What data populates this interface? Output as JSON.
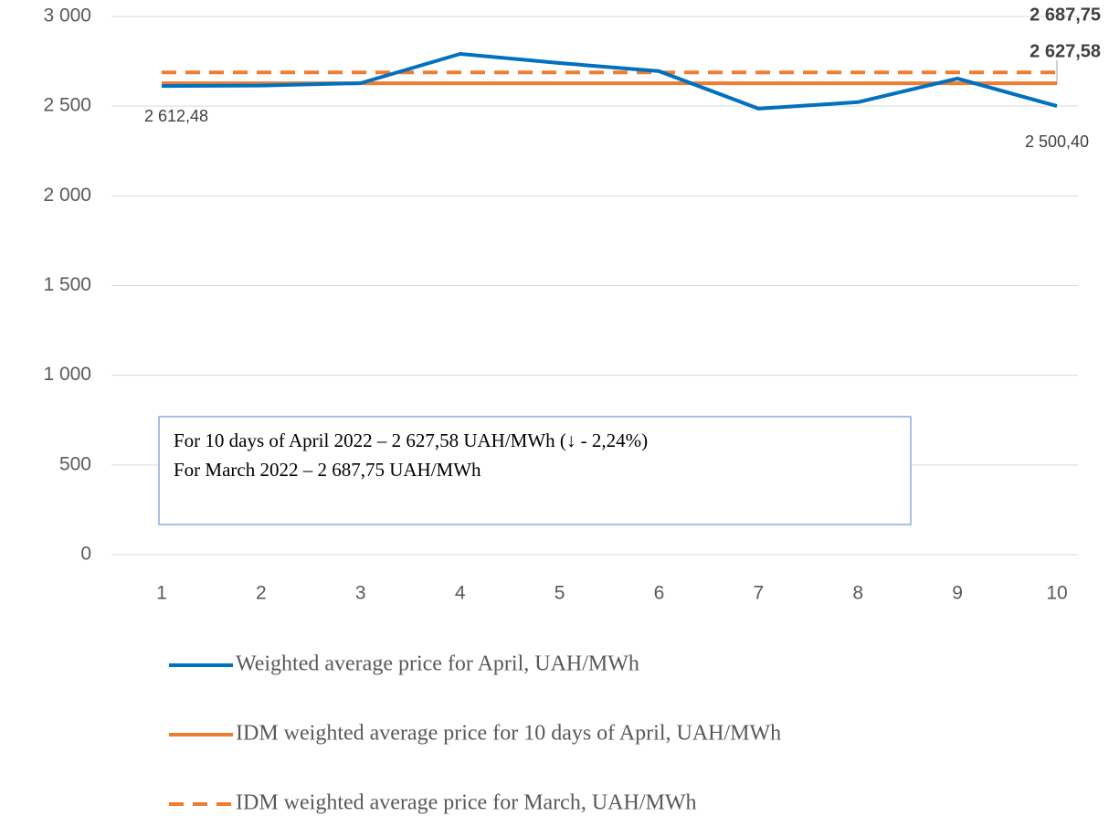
{
  "chart_data": {
    "type": "line",
    "categories": [
      1,
      2,
      3,
      4,
      5,
      6,
      7,
      8,
      9,
      10
    ],
    "ylim": [
      0,
      3000
    ],
    "yticks": [
      0,
      500,
      {
        "value": 1000,
        "label": "1 000"
      },
      {
        "value": 1500,
        "label": "1 500"
      },
      {
        "value": 2000,
        "label": "2 000"
      },
      {
        "value": 2500,
        "label": "2 500"
      },
      {
        "value": 3000,
        "label": "3 000"
      }
    ],
    "grid": true,
    "legend": "bottom",
    "series": [
      {
        "name": "Weighted average price for April, UAH/MWh",
        "color": "#0070c0",
        "dash": false,
        "values": [
          2612.48,
          2615,
          2628,
          2791,
          2740,
          2695,
          2486,
          2522,
          2654,
          2500.4
        ],
        "value_labels": [
          "2 612,48",
          null,
          null,
          null,
          null,
          null,
          null,
          null,
          null,
          "2 500,40"
        ]
      },
      {
        "name": "IDM weighted average price for 10 days of April, UAH/MWh",
        "color": "#ed7d31",
        "dash": false,
        "values": [
          2627.58,
          2627.58,
          2627.58,
          2627.58,
          2627.58,
          2627.58,
          2627.58,
          2627.58,
          2627.58,
          2627.58
        ],
        "value_labels": [
          null,
          null,
          null,
          null,
          null,
          null,
          null,
          null,
          null,
          "2 627,58"
        ]
      },
      {
        "name": "IDM weighted average price for March, UAH/MWh",
        "color": "#ed7d31",
        "dash": true,
        "values": [
          2687.75,
          2687.75,
          2687.75,
          2687.75,
          2687.75,
          2687.75,
          2687.75,
          2687.75,
          2687.75,
          2687.75
        ],
        "value_labels": [
          null,
          null,
          null,
          null,
          null,
          null,
          null,
          null,
          null,
          "2 687,75"
        ]
      }
    ],
    "annotations": [
      "For 10 days of April 2022 – 2 627,58 UAH/MWh  (↓ - 2,24%)",
      "For March 2022 – 2 687,75 UAH/MWh"
    ]
  }
}
